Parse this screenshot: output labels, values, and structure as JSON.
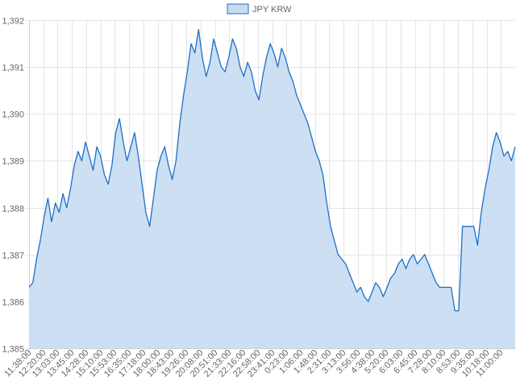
{
  "chart_data": {
    "type": "area",
    "legend": {
      "position": "top",
      "entries": [
        "JPY KRW"
      ]
    },
    "grid": true,
    "ylim": [
      1385,
      1392
    ],
    "yticks": [
      "1,392",
      "1,391",
      "1,390",
      "1,389",
      "1,388",
      "1,387",
      "1,386",
      "1,385"
    ],
    "yticks_values": [
      1392,
      1391,
      1390,
      1389,
      1388,
      1387,
      1386,
      1385
    ],
    "xticks": [
      "11:38:00",
      "12:20:00",
      "13:03:00",
      "13:45:00",
      "14:28:00",
      "15:10:00",
      "15:53:00",
      "16:35:00",
      "17:18:00",
      "18:00:00",
      "18:43:00",
      "19:26:00",
      "20:08:00",
      "20:51:00",
      "21:33:00",
      "22:16:00",
      "22:58:00",
      "23:41:00",
      "0:23:00",
      "1:06:00",
      "1:48:00",
      "2:31:00",
      "3:13:00",
      "3:56:00",
      "4:38:00",
      "5:20:00",
      "6:03:00",
      "6:45:00",
      "7:28:00",
      "8:10:00",
      "8:53:00",
      "9:35:00",
      "10:18:00",
      "11:00:00"
    ],
    "colors": {
      "line": "#1f6fc5",
      "fill": "#c6dbf2",
      "legend_fill": "#c6dbf2",
      "legend_border": "#1f6fc5"
    },
    "series": [
      {
        "name": "JPY KRW",
        "values": [
          1386.3,
          1386.4,
          1386.9,
          1387.3,
          1387.8,
          1388.2,
          1387.7,
          1388.1,
          1387.9,
          1388.3,
          1388.0,
          1388.4,
          1388.9,
          1389.2,
          1389.0,
          1389.4,
          1389.1,
          1388.8,
          1389.3,
          1389.1,
          1388.7,
          1388.5,
          1388.9,
          1389.6,
          1389.9,
          1389.4,
          1389.0,
          1389.3,
          1389.6,
          1389.1,
          1388.5,
          1387.9,
          1387.6,
          1388.2,
          1388.8,
          1389.1,
          1389.3,
          1388.9,
          1388.6,
          1389.0,
          1389.8,
          1390.4,
          1390.9,
          1391.5,
          1391.3,
          1391.8,
          1391.2,
          1390.8,
          1391.1,
          1391.6,
          1391.3,
          1391.0,
          1390.9,
          1391.2,
          1391.6,
          1391.4,
          1391.0,
          1390.8,
          1391.1,
          1390.9,
          1390.5,
          1390.3,
          1390.8,
          1391.2,
          1391.5,
          1391.3,
          1391.0,
          1391.4,
          1391.2,
          1390.9,
          1390.7,
          1390.4,
          1390.2,
          1390.0,
          1389.8,
          1389.5,
          1389.2,
          1389.0,
          1388.7,
          1388.1,
          1387.6,
          1387.3,
          1387.0,
          1386.9,
          1386.8,
          1386.6,
          1386.4,
          1386.2,
          1386.3,
          1386.1,
          1386.0,
          1386.2,
          1386.4,
          1386.3,
          1386.1,
          1386.3,
          1386.5,
          1386.6,
          1386.8,
          1386.9,
          1386.7,
          1386.9,
          1387.0,
          1386.8,
          1386.9,
          1387.0,
          1386.8,
          1386.6,
          1386.4,
          1386.3,
          1386.3,
          1386.3,
          1386.3,
          1385.8,
          1385.8,
          1387.6,
          1387.6,
          1387.6,
          1387.6,
          1387.2,
          1387.9,
          1388.4,
          1388.8,
          1389.3,
          1389.6,
          1389.4,
          1389.1,
          1389.2,
          1389.0,
          1389.3
        ]
      }
    ]
  }
}
